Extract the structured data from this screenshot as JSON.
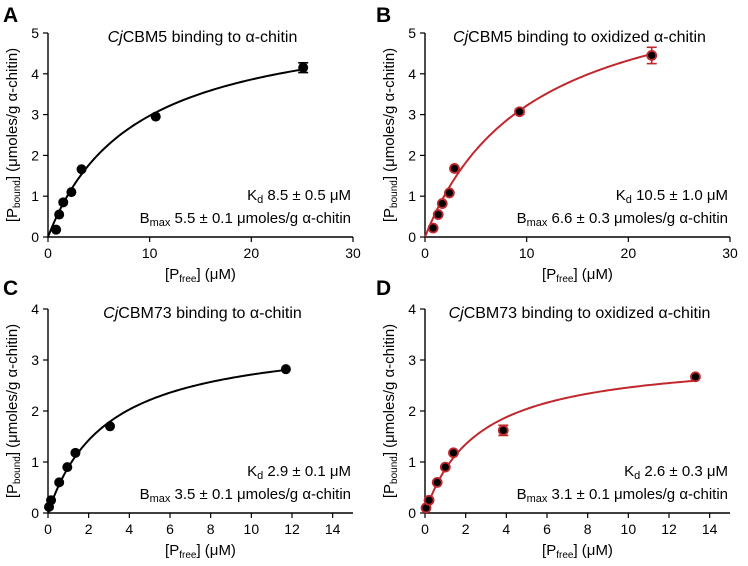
{
  "chart_data": [
    {
      "panel": "A",
      "type": "scatter",
      "title_italic": "Cj",
      "title_rest": "CBM5 binding to α-chitin",
      "xlabel": "[P_free] (μM)",
      "ylabel": "[P_bound] (μmoles/g α-chitin)",
      "xlim": [
        0,
        30
      ],
      "ylim": [
        0,
        5
      ],
      "xticks": [
        0,
        10,
        20,
        30
      ],
      "yticks": [
        0,
        1,
        2,
        3,
        4,
        5
      ],
      "x": [
        0.8,
        1.1,
        1.5,
        2.3,
        3.3,
        10.6,
        25.1
      ],
      "y": [
        0.18,
        0.55,
        0.85,
        1.1,
        1.66,
        2.95,
        4.15
      ],
      "yerr": [
        0,
        0,
        0,
        0,
        0,
        0,
        0.12
      ],
      "fit": {
        "model": "one-site binding",
        "Kd": 8.5,
        "Bmax": 5.5
      },
      "color": "#000000",
      "kd_text": "8.5 ± 0.5 μM",
      "bmax_text": "5.5 ± 0.1 μmoles/g α-chitin"
    },
    {
      "panel": "B",
      "type": "scatter",
      "title_italic": "Cj",
      "title_rest": "CBM5 binding to oxidized α-chitin",
      "xlabel": "[P_free] (μM)",
      "ylabel": "[P_bound] (μmoles/g α-chitin)",
      "xlim": [
        0,
        30
      ],
      "ylim": [
        0,
        5
      ],
      "xticks": [
        0,
        10,
        20,
        30
      ],
      "yticks": [
        0,
        1,
        2,
        3,
        4,
        5
      ],
      "x": [
        0.8,
        1.3,
        1.7,
        2.4,
        2.9,
        9.3,
        22.3
      ],
      "y": [
        0.22,
        0.55,
        0.82,
        1.08,
        1.68,
        3.07,
        4.45
      ],
      "yerr": [
        0,
        0,
        0,
        0,
        0,
        0.06,
        0.2
      ],
      "fit": {
        "model": "one-site binding",
        "Kd": 10.5,
        "Bmax": 6.6
      },
      "color": "#c0282d",
      "kd_text": "10.5 ± 1.0 μM",
      "bmax_text": "6.6 ± 0.3 μmoles/g α-chitin"
    },
    {
      "panel": "C",
      "type": "scatter",
      "title_italic": "Cj",
      "title_rest": "CBM73 binding to α-chitin",
      "xlabel": "[P_free] (μM)",
      "ylabel": "[P_bound] (μmoles/g α-chitin)",
      "xlim": [
        0,
        15
      ],
      "ylim": [
        0,
        4
      ],
      "xticks": [
        0,
        2,
        4,
        6,
        8,
        10,
        12,
        14
      ],
      "yticks": [
        0,
        1,
        2,
        3,
        4
      ],
      "x": [
        0.05,
        0.15,
        0.55,
        0.95,
        1.35,
        3.05,
        11.7
      ],
      "y": [
        0.12,
        0.25,
        0.6,
        0.9,
        1.18,
        1.7,
        2.82
      ],
      "yerr": [
        0,
        0,
        0,
        0,
        0,
        0,
        0
      ],
      "fit": {
        "model": "one-site binding",
        "Kd": 2.9,
        "Bmax": 3.5
      },
      "color": "#000000",
      "kd_text": "2.9 ± 0.1 μM",
      "bmax_text": "3.5 ± 0.1 μmoles/g α-chitin"
    },
    {
      "panel": "D",
      "type": "scatter",
      "title_italic": "Cj",
      "title_rest": "CBM73 binding to oxidized α-chitin",
      "xlabel": "[P_free] (μM)",
      "ylabel": "[P_bound] (μmoles/g α-chitin)",
      "xlim": [
        0,
        15
      ],
      "ylim": [
        0,
        4
      ],
      "xticks": [
        0,
        2,
        4,
        6,
        8,
        10,
        12,
        14
      ],
      "yticks": [
        0,
        1,
        2,
        3,
        4
      ],
      "x": [
        0.05,
        0.2,
        0.6,
        1.0,
        1.4,
        3.85,
        13.3
      ],
      "y": [
        0.1,
        0.25,
        0.6,
        0.9,
        1.18,
        1.62,
        2.67
      ],
      "yerr": [
        0,
        0,
        0,
        0,
        0,
        0.1,
        0
      ],
      "fit": {
        "model": "one-site binding",
        "Kd": 2.6,
        "Bmax": 3.1
      },
      "color": "#c0282d",
      "kd_text": "2.6 ± 0.3 μM",
      "bmax_text": "3.1 ± 0.1 μmoles/g α-chitin"
    }
  ],
  "labels": {
    "kd_main": "K",
    "kd_sub": "d",
    "bmax_main": "B",
    "bmax_sub": "max",
    "xlabel_pre": "[P",
    "xlabel_sub": "free",
    "xlabel_post": "] (μM)",
    "ylabel_pre": "[P",
    "ylabel_sub": "bound",
    "ylabel_post": "] (μmoles/g α-chitin)"
  }
}
